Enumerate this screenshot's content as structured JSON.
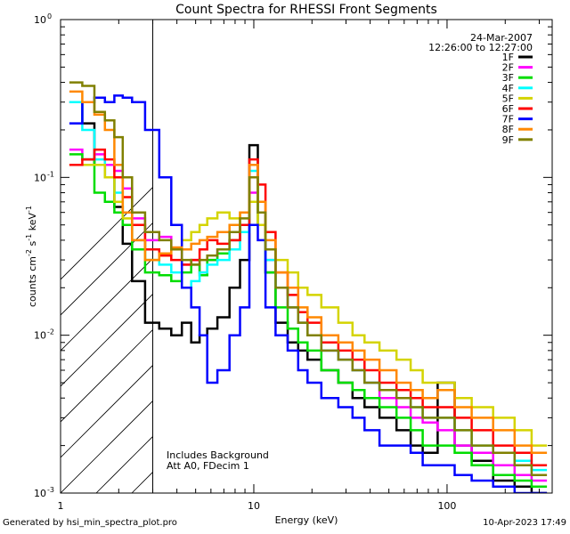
{
  "footer": {
    "generated": "Generated by hsi_min_spectra_plot.pro",
    "timestamp": "10-Apr-2023 17:49"
  },
  "chart_data": {
    "type": "line",
    "title": "Count Spectra for RHESSI Front Segments",
    "xlabel": "Energy (keV)",
    "ylabel_parts": [
      "counts cm",
      "-2",
      " s",
      "-1",
      " keV",
      "-1"
    ],
    "xscale": "log",
    "yscale": "log",
    "xlim": [
      1,
      350
    ],
    "ylim": [
      0.001,
      1
    ],
    "x_ticks": [
      {
        "value": 1,
        "label": "1"
      },
      {
        "value": 10,
        "label": "10"
      },
      {
        "value": 100,
        "label": "100"
      }
    ],
    "y_ticks": [
      {
        "value": 1,
        "base": "10",
        "exp": "0"
      },
      {
        "value": 0.1,
        "base": "10",
        "exp": "-1"
      },
      {
        "value": 0.01,
        "base": "10",
        "exp": "-2"
      },
      {
        "value": 0.001,
        "base": "10",
        "exp": "-3"
      }
    ],
    "date": "24-Mar-2007",
    "time_range": "12:26:00 to 12:27:00",
    "hatched_region_max_kev": 3,
    "annotations": [
      "Includes Background",
      "Att A0, FDecim 1"
    ],
    "legend_position": "top-right",
    "series": [
      {
        "name": "1F",
        "color": "#000000",
        "energies": [
          1.2,
          1.4,
          1.6,
          1.8,
          2.0,
          2.2,
          2.5,
          3.0,
          3.5,
          4.0,
          4.5,
          5.0,
          5.5,
          6.0,
          7.0,
          8.0,
          9.0,
          10.0,
          11.0,
          12.0,
          14.0,
          16.0,
          18.0,
          20.0,
          25.0,
          30.0,
          35.0,
          40.0,
          50.0,
          60.0,
          70.0,
          80.0,
          100.0,
          120.0,
          150.0,
          200.0,
          250.0,
          300.0
        ],
        "values": [
          0.3,
          0.22,
          0.12,
          0.1,
          0.065,
          0.038,
          0.022,
          0.012,
          0.011,
          0.01,
          0.012,
          0.009,
          0.01,
          0.011,
          0.013,
          0.02,
          0.03,
          0.16,
          0.06,
          0.025,
          0.012,
          0.009,
          0.008,
          0.007,
          0.006,
          0.005,
          0.004,
          0.0035,
          0.003,
          0.0025,
          0.002,
          0.0018,
          0.005,
          0.002,
          0.0016,
          0.0012,
          0.0011,
          0.001
        ]
      },
      {
        "name": "2F",
        "color": "#ff00ff",
        "energies": [
          1.2,
          1.4,
          1.6,
          1.8,
          2.0,
          2.2,
          2.5,
          3.0,
          3.5,
          4.0,
          4.5,
          5.0,
          5.5,
          6.0,
          7.0,
          8.0,
          9.0,
          10.0,
          11.0,
          12.0,
          14.0,
          16.0,
          18.0,
          20.0,
          25.0,
          30.0,
          35.0,
          40.0,
          50.0,
          60.0,
          70.0,
          80.0,
          100.0,
          120.0,
          150.0,
          200.0,
          250.0,
          300.0
        ],
        "values": [
          0.15,
          0.13,
          0.14,
          0.12,
          0.11,
          0.085,
          0.055,
          0.04,
          0.042,
          0.035,
          0.028,
          0.03,
          0.025,
          0.03,
          0.035,
          0.04,
          0.05,
          0.08,
          0.05,
          0.03,
          0.02,
          0.015,
          0.012,
          0.01,
          0.008,
          0.007,
          0.006,
          0.005,
          0.004,
          0.0035,
          0.003,
          0.0028,
          0.0025,
          0.002,
          0.0018,
          0.0015,
          0.0013,
          0.0012
        ]
      },
      {
        "name": "3F",
        "color": "#00dd00",
        "energies": [
          1.2,
          1.4,
          1.6,
          1.8,
          2.0,
          2.2,
          2.5,
          3.0,
          3.5,
          4.0,
          4.5,
          5.0,
          5.5,
          6.0,
          7.0,
          8.0,
          9.0,
          10.0,
          11.0,
          12.0,
          14.0,
          16.0,
          18.0,
          20.0,
          25.0,
          30.0,
          35.0,
          40.0,
          50.0,
          60.0,
          70.0,
          80.0,
          100.0,
          120.0,
          150.0,
          200.0,
          250.0,
          300.0
        ],
        "values": [
          0.14,
          0.13,
          0.08,
          0.07,
          0.06,
          0.05,
          0.035,
          0.025,
          0.024,
          0.022,
          0.025,
          0.028,
          0.024,
          0.03,
          0.033,
          0.04,
          0.05,
          0.1,
          0.05,
          0.025,
          0.015,
          0.011,
          0.009,
          0.008,
          0.006,
          0.005,
          0.0045,
          0.004,
          0.0035,
          0.003,
          0.0025,
          0.002,
          0.002,
          0.0018,
          0.0015,
          0.0013,
          0.0012,
          0.0011
        ]
      },
      {
        "name": "4F",
        "color": "#00ffff",
        "energies": [
          1.2,
          1.4,
          1.6,
          1.8,
          2.0,
          2.2,
          2.5,
          3.0,
          3.5,
          4.0,
          4.5,
          5.0,
          5.5,
          6.0,
          7.0,
          8.0,
          9.0,
          10.0,
          11.0,
          12.0,
          14.0,
          16.0,
          18.0,
          20.0,
          25.0,
          30.0,
          35.0,
          40.0,
          50.0,
          60.0,
          70.0,
          80.0,
          100.0,
          120.0,
          150.0,
          200.0,
          250.0,
          300.0
        ],
        "values": [
          0.3,
          0.2,
          0.13,
          0.1,
          0.08,
          0.06,
          0.04,
          0.03,
          0.028,
          0.025,
          0.02,
          0.022,
          0.025,
          0.028,
          0.03,
          0.035,
          0.045,
          0.11,
          0.06,
          0.03,
          0.02,
          0.015,
          0.012,
          0.01,
          0.008,
          0.007,
          0.006,
          0.005,
          0.0045,
          0.004,
          0.0035,
          0.003,
          0.003,
          0.0025,
          0.002,
          0.0018,
          0.0016,
          0.0014
        ]
      },
      {
        "name": "5F",
        "color": "#d4d400",
        "energies": [
          1.2,
          1.4,
          1.6,
          1.8,
          2.0,
          2.2,
          2.5,
          3.0,
          3.5,
          4.0,
          4.5,
          5.0,
          5.5,
          6.0,
          7.0,
          8.0,
          9.0,
          10.0,
          11.0,
          12.0,
          14.0,
          16.0,
          18.0,
          20.0,
          25.0,
          30.0,
          35.0,
          40.0,
          50.0,
          60.0,
          70.0,
          80.0,
          100.0,
          120.0,
          150.0,
          200.0,
          250.0,
          300.0
        ],
        "values": [
          0.12,
          0.12,
          0.12,
          0.1,
          0.07,
          0.055,
          0.04,
          0.03,
          0.032,
          0.035,
          0.04,
          0.045,
          0.05,
          0.055,
          0.06,
          0.055,
          0.06,
          0.07,
          0.05,
          0.035,
          0.03,
          0.025,
          0.02,
          0.018,
          0.015,
          0.012,
          0.01,
          0.009,
          0.008,
          0.007,
          0.006,
          0.005,
          0.005,
          0.004,
          0.0035,
          0.003,
          0.0025,
          0.002
        ]
      },
      {
        "name": "6F",
        "color": "#ff0000",
        "energies": [
          1.2,
          1.4,
          1.6,
          1.8,
          2.0,
          2.2,
          2.5,
          3.0,
          3.5,
          4.0,
          4.5,
          5.0,
          5.5,
          6.0,
          7.0,
          8.0,
          9.0,
          10.0,
          11.0,
          12.0,
          14.0,
          16.0,
          18.0,
          20.0,
          25.0,
          30.0,
          35.0,
          40.0,
          50.0,
          60.0,
          70.0,
          80.0,
          100.0,
          120.0,
          150.0,
          200.0,
          250.0,
          300.0
        ],
        "values": [
          0.12,
          0.13,
          0.15,
          0.13,
          0.1,
          0.075,
          0.05,
          0.035,
          0.032,
          0.03,
          0.028,
          0.03,
          0.035,
          0.04,
          0.038,
          0.04,
          0.05,
          0.13,
          0.09,
          0.045,
          0.025,
          0.018,
          0.014,
          0.012,
          0.009,
          0.008,
          0.007,
          0.006,
          0.005,
          0.0045,
          0.004,
          0.0035,
          0.0035,
          0.003,
          0.0025,
          0.002,
          0.0018,
          0.0015
        ]
      },
      {
        "name": "7F",
        "color": "#0000ff",
        "energies": [
          1.2,
          1.4,
          1.6,
          1.8,
          2.0,
          2.2,
          2.5,
          3.0,
          3.5,
          4.0,
          4.5,
          5.0,
          5.5,
          6.0,
          7.0,
          8.0,
          9.0,
          10.0,
          11.0,
          12.0,
          14.0,
          16.0,
          18.0,
          20.0,
          25.0,
          30.0,
          35.0,
          40.0,
          50.0,
          60.0,
          70.0,
          80.0,
          100.0,
          120.0,
          150.0,
          200.0,
          250.0,
          300.0
        ],
        "values": [
          0.22,
          0.3,
          0.32,
          0.3,
          0.33,
          0.32,
          0.3,
          0.2,
          0.1,
          0.05,
          0.02,
          0.015,
          0.01,
          0.005,
          0.006,
          0.01,
          0.015,
          0.05,
          0.04,
          0.015,
          0.01,
          0.008,
          0.006,
          0.005,
          0.004,
          0.0035,
          0.003,
          0.0025,
          0.002,
          0.002,
          0.0018,
          0.0015,
          0.0015,
          0.0013,
          0.0012,
          0.0011,
          0.001,
          0.001
        ]
      },
      {
        "name": "8F",
        "color": "#ff8800",
        "energies": [
          1.2,
          1.4,
          1.6,
          1.8,
          2.0,
          2.2,
          2.5,
          3.0,
          3.5,
          4.0,
          4.5,
          5.0,
          5.5,
          6.0,
          7.0,
          8.0,
          9.0,
          10.0,
          11.0,
          12.0,
          14.0,
          16.0,
          18.0,
          20.0,
          25.0,
          30.0,
          35.0,
          40.0,
          50.0,
          60.0,
          70.0,
          80.0,
          100.0,
          120.0,
          150.0,
          200.0,
          250.0,
          300.0
        ],
        "values": [
          0.35,
          0.3,
          0.25,
          0.2,
          0.12,
          0.06,
          0.04,
          0.03,
          0.033,
          0.036,
          0.035,
          0.038,
          0.04,
          0.042,
          0.045,
          0.05,
          0.06,
          0.12,
          0.07,
          0.04,
          0.025,
          0.02,
          0.015,
          0.013,
          0.01,
          0.009,
          0.008,
          0.007,
          0.006,
          0.005,
          0.0045,
          0.004,
          0.0045,
          0.0035,
          0.003,
          0.0025,
          0.002,
          0.0018
        ]
      },
      {
        "name": "9F",
        "color": "#808000",
        "energies": [
          1.2,
          1.4,
          1.6,
          1.8,
          2.0,
          2.2,
          2.5,
          3.0,
          3.5,
          4.0,
          4.5,
          5.0,
          5.5,
          6.0,
          7.0,
          8.0,
          9.0,
          10.0,
          11.0,
          12.0,
          14.0,
          16.0,
          18.0,
          20.0,
          25.0,
          30.0,
          35.0,
          40.0,
          50.0,
          60.0,
          70.0,
          80.0,
          100.0,
          120.0,
          150.0,
          200.0,
          250.0,
          300.0
        ],
        "values": [
          0.4,
          0.38,
          0.26,
          0.23,
          0.18,
          0.1,
          0.06,
          0.045,
          0.04,
          0.035,
          0.03,
          0.028,
          0.03,
          0.032,
          0.035,
          0.045,
          0.055,
          0.1,
          0.06,
          0.035,
          0.02,
          0.015,
          0.012,
          0.01,
          0.008,
          0.007,
          0.006,
          0.005,
          0.0045,
          0.004,
          0.0035,
          0.003,
          0.003,
          0.0025,
          0.002,
          0.0018,
          0.0015,
          0.0013
        ]
      }
    ]
  }
}
